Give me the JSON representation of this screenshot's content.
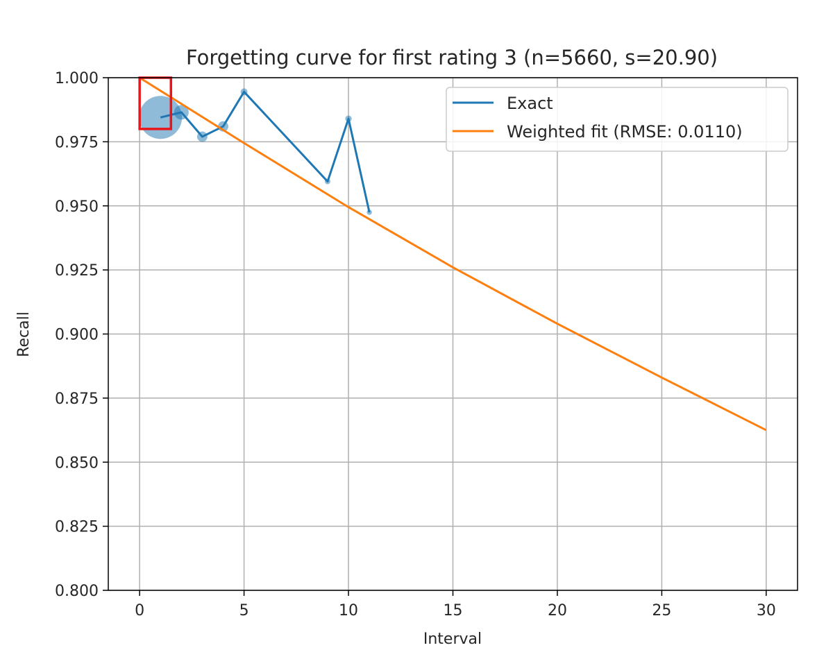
{
  "chart_data": {
    "type": "line",
    "title": "Forgetting curve for first rating 3 (n=5660, s=20.90)",
    "xlabel": "Interval",
    "ylabel": "Recall",
    "xlim": [
      -1.5,
      31.5
    ],
    "ylim": [
      0.8,
      1.0
    ],
    "xticks": [
      0,
      5,
      10,
      15,
      20,
      25,
      30
    ],
    "yticks": [
      0.8,
      0.825,
      0.85,
      0.875,
      0.9,
      0.925,
      0.95,
      0.975,
      1.0
    ],
    "xtick_labels": [
      "0",
      "5",
      "10",
      "15",
      "20",
      "25",
      "30"
    ],
    "ytick_labels": [
      "0.800",
      "0.825",
      "0.850",
      "0.875",
      "0.900",
      "0.925",
      "0.950",
      "0.975",
      "1.000"
    ],
    "grid": true,
    "legend_position": "upper-right",
    "series": [
      {
        "name": "Exact",
        "color": "#1f77b4",
        "x": [
          1,
          2,
          3,
          4,
          5,
          9,
          10,
          11
        ],
        "y": [
          0.9845,
          0.9865,
          0.977,
          0.981,
          0.9945,
          0.9595,
          0.984,
          0.9475
        ],
        "marker_sizes_relative": [
          1.0,
          0.34,
          0.24,
          0.24,
          0.16,
          0.13,
          0.15,
          0.12
        ]
      },
      {
        "name": "Weighted fit (RMSE: 0.0110)",
        "color": "#ff7f0e",
        "x": [
          0,
          5,
          10,
          15,
          20,
          25,
          30
        ],
        "y": [
          1.0,
          0.9745,
          0.9495,
          0.926,
          0.904,
          0.883,
          0.8625
        ]
      }
    ],
    "highlight_box": {
      "x_range": [
        0,
        1.5
      ],
      "y_range": [
        0.98,
        1.0
      ],
      "color": "#e8161b"
    }
  }
}
